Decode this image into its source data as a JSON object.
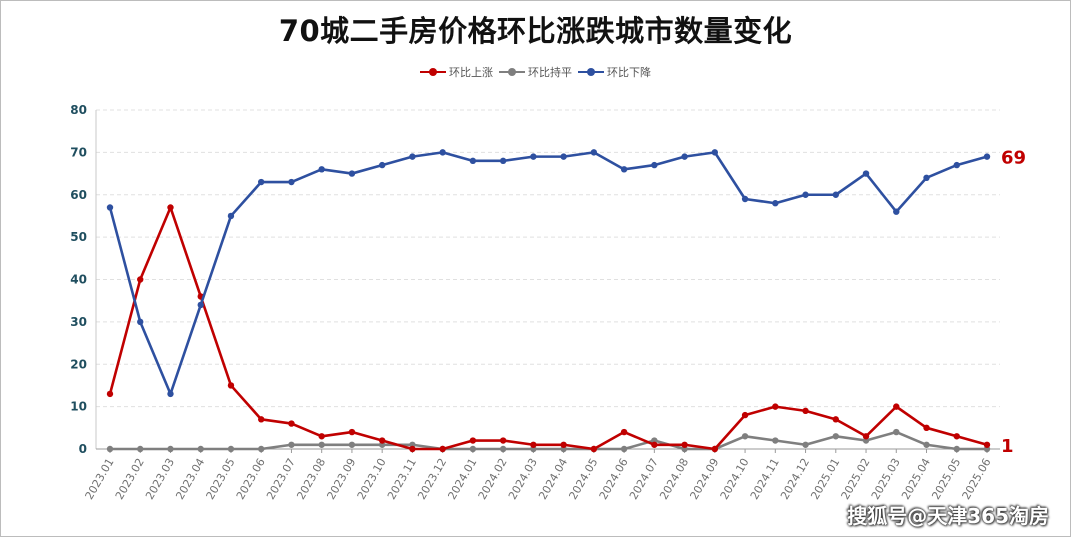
{
  "chart_data": {
    "type": "line",
    "title": "70城二手房价格环比涨跌城市数量变化",
    "ylim": [
      0,
      80
    ],
    "yticks": [
      0,
      10,
      20,
      30,
      40,
      50,
      60,
      70,
      80
    ],
    "grid": "horizontal dashed",
    "legend_position": "top-center",
    "categories": [
      "2023.01",
      "2023.02",
      "2023.03",
      "2023.04",
      "2023.05",
      "2023.06",
      "2023.07",
      "2023.08",
      "2023.09",
      "2023.10",
      "2023.11",
      "2023.12",
      "2024.01",
      "2024.02",
      "2024.03",
      "2024.04",
      "2024.05",
      "2024.06",
      "2024.07",
      "2024.08",
      "2024.09",
      "2024.10",
      "2024.11",
      "2024.12",
      "2025.01",
      "2025.02",
      "2025.03",
      "2025.04",
      "2025.05",
      "2025.06"
    ],
    "series": [
      {
        "name": "环比上涨",
        "color": "#c00000",
        "values": [
          13,
          40,
          57,
          36,
          15,
          7,
          6,
          3,
          4,
          2,
          0,
          0,
          2,
          2,
          1,
          1,
          0,
          4,
          1,
          1,
          0,
          8,
          10,
          9,
          7,
          3,
          10,
          5,
          3,
          1
        ]
      },
      {
        "name": "环比持平",
        "color": "#7f7f7f",
        "values": [
          0,
          0,
          0,
          0,
          0,
          0,
          1,
          1,
          1,
          1,
          1,
          0,
          0,
          0,
          0,
          0,
          0,
          0,
          2,
          0,
          0,
          3,
          2,
          1,
          3,
          2,
          4,
          1,
          0,
          0
        ]
      },
      {
        "name": "环比下降",
        "color": "#2e50a0",
        "values": [
          57,
          30,
          13,
          34,
          55,
          63,
          63,
          66,
          65,
          67,
          69,
          70,
          68,
          68,
          69,
          69,
          70,
          66,
          67,
          69,
          70,
          59,
          58,
          60,
          60,
          65,
          56,
          64,
          67,
          69
        ]
      }
    ],
    "end_labels": [
      {
        "series": "环比下降",
        "text": "69",
        "color": "#c00000"
      },
      {
        "series": "环比上涨",
        "text": "1",
        "color": "#c00000"
      }
    ]
  },
  "watermark": "搜狐号@天津365淘房"
}
